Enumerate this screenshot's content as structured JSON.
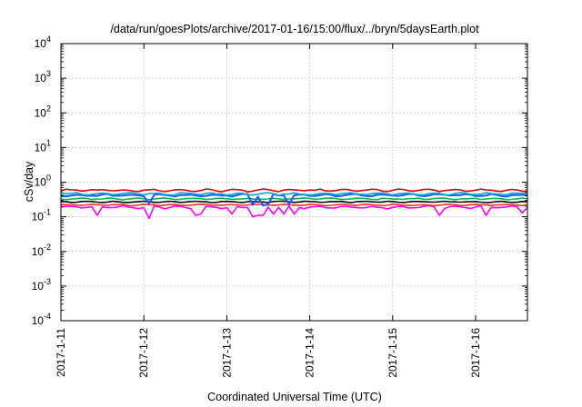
{
  "chart_data": {
    "type": "line",
    "title": "/data/run/goesPlots/archive/2017-01-16/15:00/flux/../bryn/5daysEarth.plot",
    "xlabel": "Coordinated Universal Time (UTC)",
    "ylabel": "cSv/day",
    "yscale": "log",
    "ylim": [
      0.0001,
      10000
    ],
    "xlim": [
      "2017-01-11T00:00",
      "2017-01-16T15:00"
    ],
    "grid": true,
    "x_ticks": [
      "2017-1-11",
      "2017-1-12",
      "2017-1-13",
      "2017-1-14",
      "2017-1-15",
      "2017-1-16"
    ],
    "y_ticks": [
      {
        "mant": "10",
        "exp": "4"
      },
      {
        "mant": "10",
        "exp": "3"
      },
      {
        "mant": "10",
        "exp": "2"
      },
      {
        "mant": "10",
        "exp": "1"
      },
      {
        "mant": "10",
        "exp": "0"
      },
      {
        "mant": "10",
        "exp": "-1"
      },
      {
        "mant": "10",
        "exp": "-2"
      },
      {
        "mant": "10",
        "exp": "-3"
      },
      {
        "mant": "10",
        "exp": "-4"
      }
    ],
    "series": [
      {
        "color": "#ff00ff",
        "level": 0.19,
        "variation": 0.12,
        "dips": [
          [
            "2017-01-11T11:00",
            0.11
          ],
          [
            "2017-01-12T02:00",
            0.09
          ],
          [
            "2017-01-12T16:00",
            0.12
          ],
          [
            "2017-01-12T15:00",
            0.11
          ],
          [
            "2017-01-13T02:00",
            0.12
          ],
          [
            "2017-01-13T07:00",
            0.1
          ],
          [
            "2017-01-13T09:00",
            0.11
          ],
          [
            "2017-01-13T11:00",
            0.11
          ],
          [
            "2017-01-13T13:00",
            0.12
          ],
          [
            "2017-01-13T16:00",
            0.12
          ],
          [
            "2017-01-13T19:00",
            0.12
          ],
          [
            "2017-01-15T14:00",
            0.11
          ],
          [
            "2017-01-16T03:00",
            0.11
          ],
          [
            "2017-01-16T14:00",
            0.13
          ]
        ]
      },
      {
        "color": "#ff3030",
        "level": 0.22,
        "variation": 0.06
      },
      {
        "color": "#000000",
        "level": 0.27,
        "variation": 0.06
      },
      {
        "color": "#00bb55",
        "level": 0.33,
        "variation": 0.07
      },
      {
        "color": "#2255ff",
        "level": 0.42,
        "variation": 0.1,
        "dips": [
          [
            "2017-01-12T02:00",
            0.24
          ],
          [
            "2017-01-13T08:00",
            0.22
          ],
          [
            "2017-01-13T10:00",
            0.21
          ],
          [
            "2017-01-13T12:00",
            0.23
          ],
          [
            "2017-01-13T18:00",
            0.23
          ]
        ]
      },
      {
        "color": "#00a8e0",
        "level": 0.46,
        "variation": 0.1
      },
      {
        "color": "#dd0000",
        "level": 0.58,
        "variation": 0.1
      }
    ]
  }
}
